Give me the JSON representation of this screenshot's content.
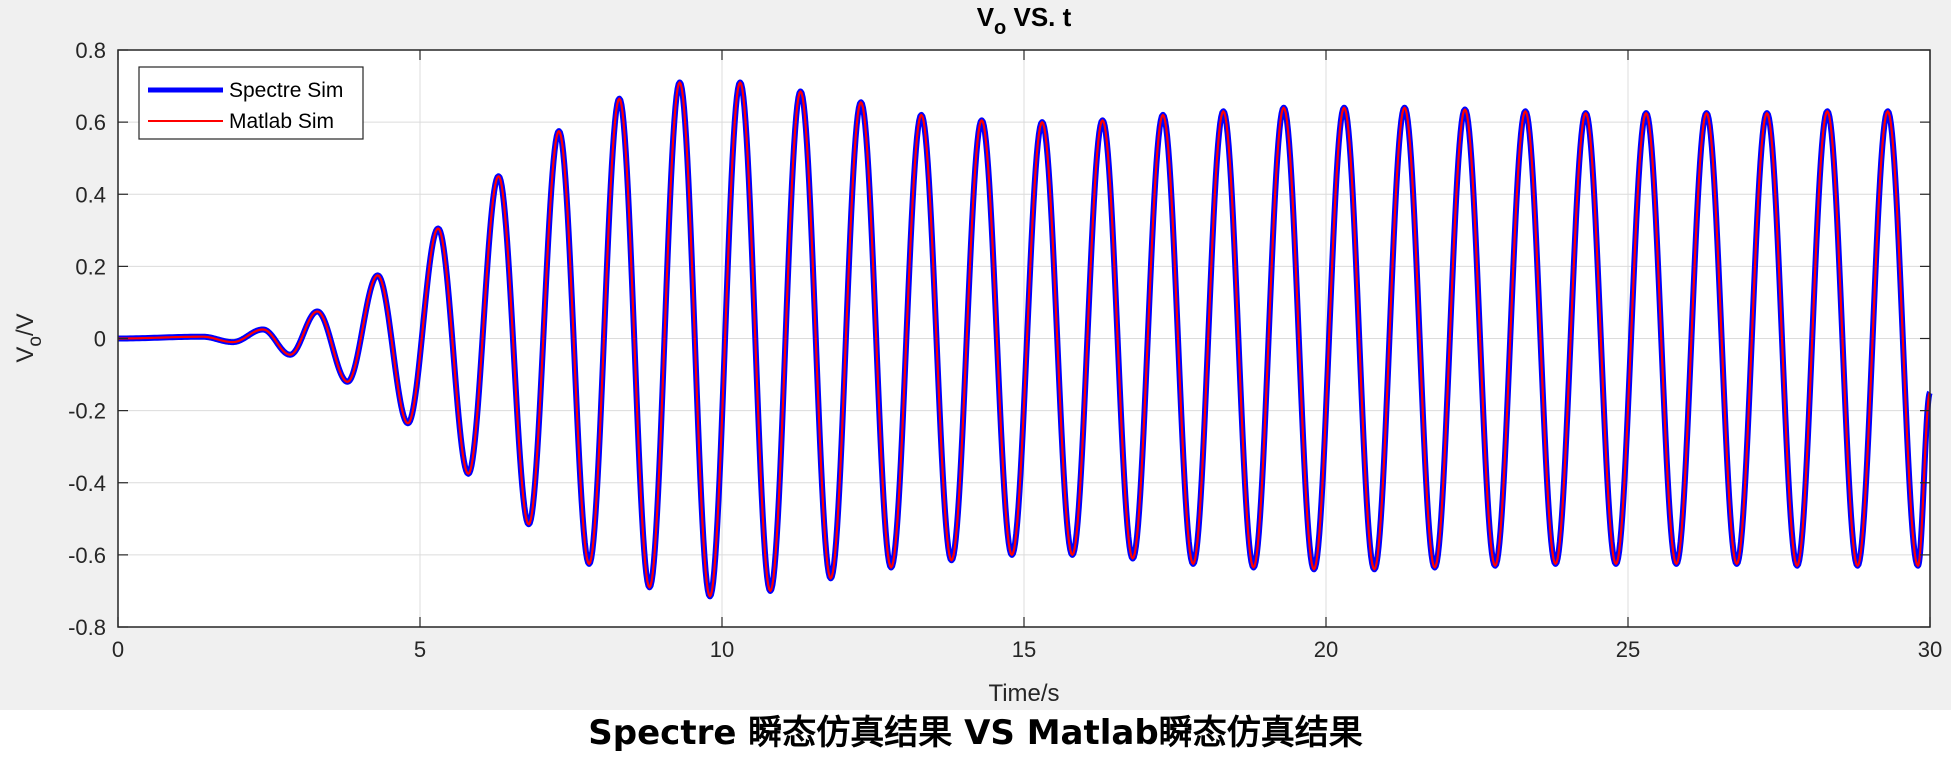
{
  "caption": "Spectre 瞬态仿真结果 VS Matlab瞬态仿真结果",
  "chart_data": {
    "type": "line",
    "title": "V",
    "title_sub": "o",
    "title_rest": " VS. t",
    "xlabel": "Time/s",
    "ylabel": "V",
    "ylabel_sub": "o",
    "ylabel_rest": "/V",
    "xlim": [
      0,
      30
    ],
    "ylim": [
      -0.8,
      0.8
    ],
    "xticks": [
      0,
      5,
      10,
      15,
      20,
      25,
      30
    ],
    "xtick_labels": [
      "0",
      "5",
      "10",
      "15",
      "20",
      "25",
      "30"
    ],
    "yticks": [
      -0.8,
      -0.6,
      -0.4,
      -0.2,
      0,
      0.2,
      0.4,
      0.6,
      0.8
    ],
    "ytick_labels": [
      "-0.8",
      "-0.6",
      "-0.4",
      "-0.2",
      "0",
      "0.2",
      "0.4",
      "0.6",
      "0.8"
    ],
    "grid": true,
    "legend_position": "top-left",
    "series": [
      {
        "name": "Spectre Sim",
        "color": "#0000ff",
        "extrema": [
          [
            0,
            0
          ],
          [
            1.4,
            0.005
          ],
          [
            1.9,
            -0.01
          ],
          [
            2.4,
            0.025
          ],
          [
            2.85,
            -0.045
          ],
          [
            3.3,
            0.075
          ],
          [
            3.8,
            -0.12
          ],
          [
            4.3,
            0.175
          ],
          [
            4.8,
            -0.235
          ],
          [
            5.3,
            0.305
          ],
          [
            5.8,
            -0.375
          ],
          [
            6.3,
            0.45
          ],
          [
            6.8,
            -0.515
          ],
          [
            7.3,
            0.575
          ],
          [
            7.8,
            -0.625
          ],
          [
            8.3,
            0.665
          ],
          [
            8.8,
            -0.69
          ],
          [
            9.3,
            0.71
          ],
          [
            9.8,
            -0.715
          ],
          [
            10.3,
            0.71
          ],
          [
            10.8,
            -0.7
          ],
          [
            11.3,
            0.685
          ],
          [
            11.8,
            -0.665
          ],
          [
            12.3,
            0.655
          ],
          [
            12.8,
            -0.635
          ],
          [
            13.3,
            0.62
          ],
          [
            13.8,
            -0.615
          ],
          [
            14.3,
            0.605
          ],
          [
            14.8,
            -0.6
          ],
          [
            15.3,
            0.6
          ],
          [
            15.8,
            -0.6
          ],
          [
            16.3,
            0.605
          ],
          [
            16.8,
            -0.61
          ],
          [
            17.3,
            0.62
          ],
          [
            17.8,
            -0.625
          ],
          [
            18.3,
            0.63
          ],
          [
            18.8,
            -0.635
          ],
          [
            19.3,
            0.64
          ],
          [
            19.8,
            -0.64
          ],
          [
            20.3,
            0.64
          ],
          [
            20.8,
            -0.64
          ],
          [
            21.3,
            0.64
          ],
          [
            21.8,
            -0.635
          ],
          [
            22.3,
            0.635
          ],
          [
            22.8,
            -0.63
          ],
          [
            23.3,
            0.63
          ],
          [
            23.8,
            -0.625
          ],
          [
            24.3,
            0.625
          ],
          [
            24.8,
            -0.625
          ],
          [
            25.3,
            0.625
          ],
          [
            25.8,
            -0.625
          ],
          [
            26.3,
            0.625
          ],
          [
            26.8,
            -0.625
          ],
          [
            27.3,
            0.625
          ],
          [
            27.8,
            -0.63
          ],
          [
            28.3,
            0.63
          ],
          [
            28.8,
            -0.63
          ],
          [
            29.3,
            0.63
          ],
          [
            29.8,
            -0.63
          ],
          [
            30.0,
            -0.15
          ]
        ]
      },
      {
        "name": "Matlab Sim",
        "color": "#ff0000",
        "extrema": [
          [
            0,
            0
          ],
          [
            1.4,
            0.005
          ],
          [
            1.9,
            -0.01
          ],
          [
            2.4,
            0.025
          ],
          [
            2.85,
            -0.045
          ],
          [
            3.3,
            0.075
          ],
          [
            3.8,
            -0.12
          ],
          [
            4.3,
            0.175
          ],
          [
            4.8,
            -0.235
          ],
          [
            5.3,
            0.305
          ],
          [
            5.8,
            -0.375
          ],
          [
            6.3,
            0.45
          ],
          [
            6.8,
            -0.515
          ],
          [
            7.3,
            0.575
          ],
          [
            7.8,
            -0.625
          ],
          [
            8.3,
            0.665
          ],
          [
            8.8,
            -0.69
          ],
          [
            9.3,
            0.71
          ],
          [
            9.8,
            -0.715
          ],
          [
            10.3,
            0.71
          ],
          [
            10.8,
            -0.7
          ],
          [
            11.3,
            0.685
          ],
          [
            11.8,
            -0.665
          ],
          [
            12.3,
            0.655
          ],
          [
            12.8,
            -0.635
          ],
          [
            13.3,
            0.62
          ],
          [
            13.8,
            -0.615
          ],
          [
            14.3,
            0.605
          ],
          [
            14.8,
            -0.6
          ],
          [
            15.3,
            0.6
          ],
          [
            15.8,
            -0.6
          ],
          [
            16.3,
            0.605
          ],
          [
            16.8,
            -0.61
          ],
          [
            17.3,
            0.62
          ],
          [
            17.8,
            -0.625
          ],
          [
            18.3,
            0.63
          ],
          [
            18.8,
            -0.635
          ],
          [
            19.3,
            0.64
          ],
          [
            19.8,
            -0.64
          ],
          [
            20.3,
            0.64
          ],
          [
            20.8,
            -0.64
          ],
          [
            21.3,
            0.64
          ],
          [
            21.8,
            -0.635
          ],
          [
            22.3,
            0.635
          ],
          [
            22.8,
            -0.63
          ],
          [
            23.3,
            0.63
          ],
          [
            23.8,
            -0.625
          ],
          [
            24.3,
            0.625
          ],
          [
            24.8,
            -0.625
          ],
          [
            25.3,
            0.625
          ],
          [
            25.8,
            -0.625
          ],
          [
            26.3,
            0.625
          ],
          [
            26.8,
            -0.625
          ],
          [
            27.3,
            0.625
          ],
          [
            27.8,
            -0.63
          ],
          [
            28.3,
            0.63
          ],
          [
            28.8,
            -0.63
          ],
          [
            29.3,
            0.63
          ],
          [
            29.8,
            -0.63
          ],
          [
            30.0,
            -0.15
          ]
        ]
      }
    ]
  }
}
